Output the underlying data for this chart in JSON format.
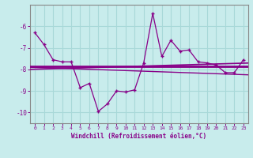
{
  "x": [
    0,
    1,
    2,
    3,
    4,
    5,
    6,
    7,
    8,
    9,
    10,
    11,
    12,
    13,
    14,
    15,
    16,
    17,
    18,
    19,
    20,
    21,
    22,
    23
  ],
  "windchill": [
    -6.3,
    -6.85,
    -7.55,
    -7.65,
    -7.65,
    -8.85,
    -8.65,
    -9.95,
    -9.6,
    -9.0,
    -9.05,
    -8.95,
    -7.7,
    -5.4,
    -7.4,
    -6.65,
    -7.15,
    -7.1,
    -7.65,
    -7.7,
    -7.8,
    -8.15,
    -8.15,
    -7.55
  ],
  "bg_color": "#c8ecec",
  "grid_color": "#a8d8d8",
  "line_color": "#880088",
  "xlabel": "Windchill (Refroidissement éolien,°C)",
  "ylim": [
    -10.5,
    -5.0
  ],
  "xlim": [
    -0.5,
    23.5
  ],
  "yticks": [
    -10,
    -9,
    -8,
    -7,
    -6
  ],
  "xticks": [
    0,
    1,
    2,
    3,
    4,
    5,
    6,
    7,
    8,
    9,
    10,
    11,
    12,
    13,
    14,
    15,
    16,
    17,
    18,
    19,
    20,
    21,
    22,
    23
  ]
}
